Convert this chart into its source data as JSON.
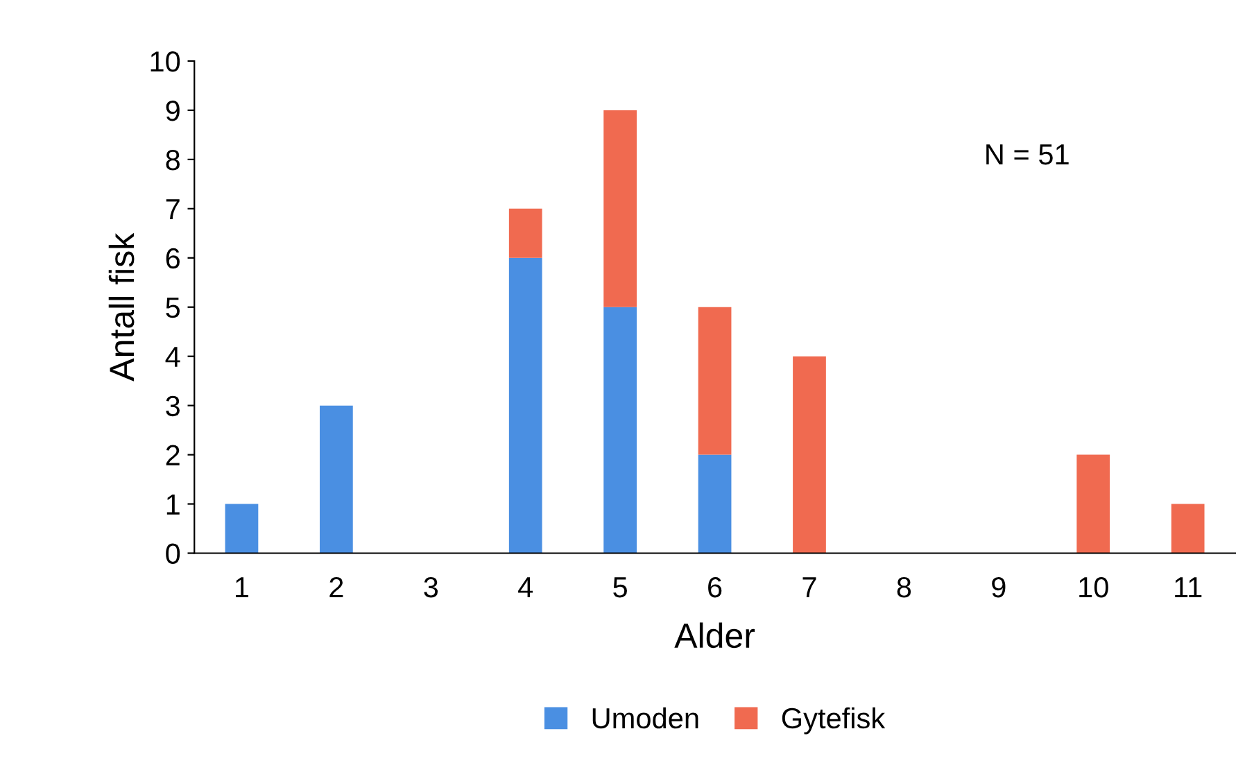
{
  "chart_data": {
    "type": "bar",
    "stacked": true,
    "xlabel": "Alder",
    "ylabel": "Antall fisk",
    "categories": [
      "1",
      "2",
      "3",
      "4",
      "5",
      "6",
      "7",
      "8",
      "9",
      "10",
      "11"
    ],
    "series": [
      {
        "name": "Umoden",
        "color": "#4a8fe2",
        "values": [
          1,
          3,
          0,
          6,
          5,
          2,
          0,
          0,
          0,
          0,
          0
        ]
      },
      {
        "name": "Gytefisk",
        "color": "#f06a50",
        "values": [
          0,
          0,
          0,
          1,
          4,
          3,
          4,
          0,
          0,
          2,
          1
        ]
      }
    ],
    "ylim": [
      0,
      10
    ],
    "yticks": [
      0,
      1,
      2,
      3,
      4,
      5,
      6,
      7,
      8,
      9,
      10
    ],
    "grid": false,
    "legend": "bottom",
    "annotations": [
      "N = 51"
    ]
  }
}
